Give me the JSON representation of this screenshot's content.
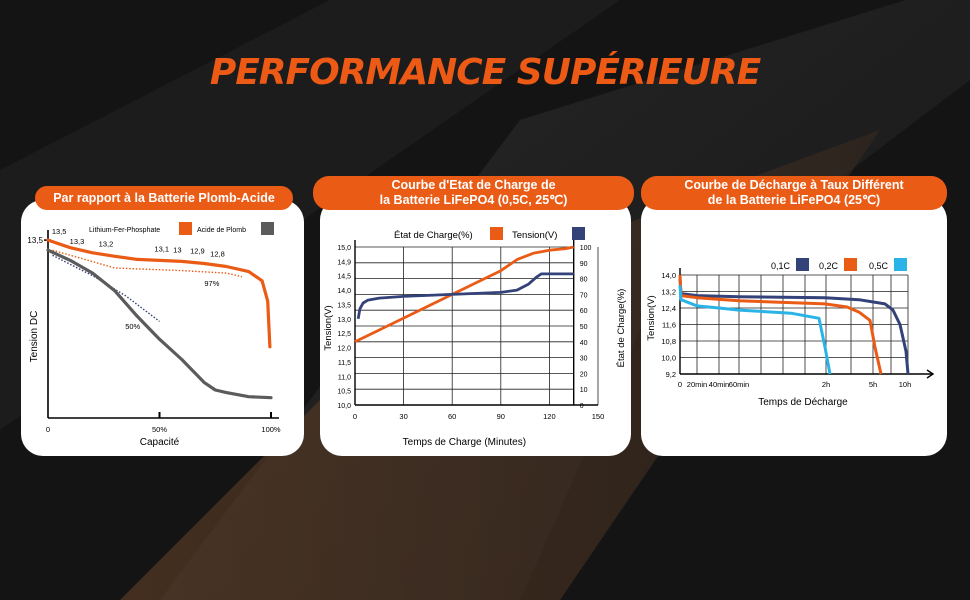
{
  "title": "PERFORMANCE SUPÉRIEURE",
  "colors": {
    "orange": "#ea5b16",
    "navy": "#34427a",
    "gray": "#5b5b5b",
    "cyan": "#2ab3e6",
    "bg": "#151515"
  },
  "panels": [
    {
      "title_lines": [
        "Par rapport à la Batterie Plomb-Acide"
      ]
    },
    {
      "title_lines": [
        "Courbe d'Etat de Charge de",
        "la Batterie LiFePO4 (0,5C, 25℃)"
      ]
    },
    {
      "title_lines": [
        "Courbe de Décharge à Taux Différent",
        "de la Batterie LiFePO4 (25℃)"
      ]
    }
  ],
  "chart_data": [
    {
      "type": "line",
      "xlabel": "Capacité",
      "ylabel": "Tension DC",
      "x_ticks": [
        "0",
        "50%",
        "100%"
      ],
      "xlim": [
        0,
        100
      ],
      "ylim": [
        10,
        13.6
      ],
      "y_tick_label": "13,5",
      "legend": {
        "placement": "top",
        "items": [
          "Lithium-Fer-Phosphate",
          "Acide de Plomb"
        ]
      },
      "series": [
        {
          "name": "Lithium-Fer-Phosphate",
          "color": "#ea5b16",
          "x": [
            0,
            10,
            20,
            30,
            40,
            50,
            60,
            70,
            80,
            90,
            96,
            98.5,
            99.5
          ],
          "y": [
            13.5,
            13.35,
            13.25,
            13.18,
            13.12,
            13.1,
            13.08,
            13.04,
            12.98,
            12.88,
            12.7,
            12.3,
            11.4
          ]
        },
        {
          "name": "Acide de Plomb",
          "color": "#5b5b5b",
          "x": [
            0,
            10,
            20,
            30,
            40,
            50,
            60,
            70,
            75,
            80,
            90,
            100
          ],
          "y": [
            13.3,
            13.1,
            12.85,
            12.5,
            12.0,
            11.55,
            11.15,
            10.7,
            10.55,
            10.5,
            10.42,
            10.4
          ]
        }
      ],
      "dotted_series": [
        {
          "color": "#ea5b16",
          "x": [
            2,
            30,
            60,
            80,
            87
          ],
          "y": [
            13.3,
            12.95,
            12.9,
            12.85,
            12.78
          ]
        },
        {
          "color": "#34427a",
          "x": [
            2,
            20,
            35,
            50
          ],
          "y": [
            13.2,
            12.8,
            12.4,
            11.9
          ]
        }
      ],
      "annotations": [
        {
          "text": "13,5",
          "x": 5,
          "y": 13.62
        },
        {
          "text": "13,3",
          "x": 13,
          "y": 13.42
        },
        {
          "text": "13,2",
          "x": 26,
          "y": 13.37
        },
        {
          "text": "13,1",
          "x": 51,
          "y": 13.28
        },
        {
          "text": "13",
          "x": 58,
          "y": 13.26
        },
        {
          "text": "12,9",
          "x": 67,
          "y": 13.24
        },
        {
          "text": "12,8",
          "x": 76,
          "y": 13.18
        },
        {
          "text": "97%",
          "x": 73.5,
          "y": 12.6
        },
        {
          "text": "50%",
          "x": 38,
          "y": 11.75
        }
      ]
    },
    {
      "type": "line",
      "xlabel": "Temps de Charge (Minutes)",
      "ylabel": "Tension(V)",
      "y2label": "État de Charge(%)",
      "x_ticks": [
        0,
        30,
        60,
        90,
        120,
        150
      ],
      "xlim": [
        0,
        150
      ],
      "y_ticks": [
        "10,0",
        "10,5",
        "11,0",
        "11,5",
        "12,0",
        "12,5",
        "13,0",
        "13,5",
        "14,0",
        "14,5",
        "14,9",
        "15,0"
      ],
      "y2_ticks": [
        0,
        10,
        20,
        30,
        40,
        50,
        60,
        70,
        80,
        90,
        100
      ],
      "y2lim": [
        0,
        100
      ],
      "legend": {
        "placement": "top",
        "items": [
          "État de Charge(%)",
          "Tension(V)"
        ]
      },
      "series": [
        {
          "name": "État de Charge(%)",
          "color": "#ea5b16",
          "axis": "right",
          "x": [
            0,
            30,
            60,
            90,
            100,
            110,
            120,
            130,
            135
          ],
          "y": [
            40,
            55,
            70,
            85,
            92,
            96,
            98,
            99,
            100
          ]
        },
        {
          "name": "Tension(V)",
          "color": "#34427a",
          "axis": "left",
          "x": [
            2,
            3,
            5,
            8,
            15,
            30,
            60,
            90,
            100,
            107,
            112,
            115,
            120,
            135
          ],
          "y": [
            13.0,
            13.35,
            13.55,
            13.65,
            13.72,
            13.78,
            13.85,
            13.92,
            14.0,
            14.2,
            14.45,
            14.55,
            14.55,
            14.55
          ]
        }
      ]
    },
    {
      "type": "line",
      "xlabel": "Temps de Décharge",
      "ylabel": "Tension(V)",
      "x_ticks": [
        "0",
        "20min",
        "40min",
        "60min",
        "2h",
        "5h",
        "10h"
      ],
      "y_ticks": [
        "9,2",
        "10,0",
        "10,8",
        "11,6",
        "12,4",
        "13,2",
        "14,0"
      ],
      "legend": {
        "placement": "top-right",
        "items": [
          "0,1C",
          "0,2C",
          "0,5C"
        ]
      },
      "series": [
        {
          "name": "0,1C",
          "color": "#34427a",
          "x": [
            "0",
            "0+",
            "20min",
            "60min",
            "2h",
            "4h",
            "7h",
            "8h",
            "9h",
            "9.7h",
            "10h"
          ],
          "y": [
            13.8,
            13.1,
            13.0,
            12.95,
            12.9,
            12.8,
            12.6,
            12.3,
            11.6,
            10.3,
            9.2
          ]
        },
        {
          "name": "0,2C",
          "color": "#ea5b16",
          "x": [
            "0",
            "0+",
            "20min",
            "60min",
            "2h",
            "3h",
            "4h",
            "4.6h",
            "4.9h",
            "5.1h"
          ],
          "y": [
            14.0,
            13.0,
            12.9,
            12.75,
            12.6,
            12.45,
            12.2,
            11.8,
            10.5,
            9.2
          ]
        },
        {
          "name": "0,5C",
          "color": "#2ab3e6",
          "x": [
            "0",
            "0+",
            "20min",
            "40min",
            "60min",
            "1.5h",
            "1.9h",
            "2h",
            "2.05h"
          ],
          "y": [
            13.5,
            12.8,
            12.5,
            12.4,
            12.3,
            12.15,
            11.9,
            10.5,
            9.2
          ]
        }
      ]
    }
  ]
}
